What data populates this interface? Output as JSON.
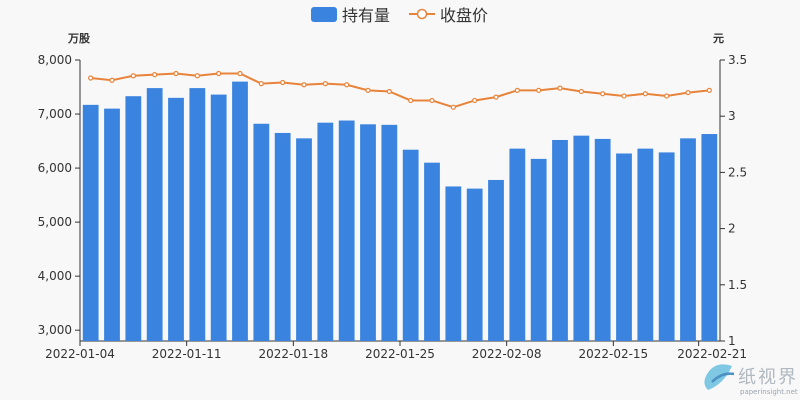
{
  "chart_data": {
    "type": "bar",
    "legend": {
      "position": "top-center",
      "entries": [
        {
          "name": "持有量",
          "marker": "bar"
        },
        {
          "name": "收盘价",
          "marker": "line"
        }
      ]
    },
    "y_left": {
      "unit": "万股",
      "min": 2800,
      "max": 8000,
      "ticks": [
        3000,
        4000,
        5000,
        6000,
        7000,
        8000
      ],
      "tick_labels": [
        "3,000",
        "4,000",
        "5,000",
        "6,000",
        "7,000",
        "8,000"
      ]
    },
    "y_right": {
      "unit": "元",
      "min": 1,
      "max": 3.5,
      "ticks": [
        1,
        1.5,
        2,
        2.5,
        3,
        3.5
      ],
      "tick_labels": [
        "1",
        "1.5",
        "2",
        "2.5",
        "3",
        "3.5"
      ]
    },
    "x_tick_labels": [
      {
        "label": "2022-01-04",
        "index": 0
      },
      {
        "label": "2022-01-11",
        "index": 5
      },
      {
        "label": "2022-01-18",
        "index": 10
      },
      {
        "label": "2022-01-25",
        "index": 15
      },
      {
        "label": "2022-02-08",
        "index": 20
      },
      {
        "label": "2022-02-15",
        "index": 25
      },
      {
        "label": "2022-02-21",
        "index": 29
      }
    ],
    "grid": false,
    "series": [
      {
        "name": "持有量",
        "type": "bar",
        "axis": "left",
        "color": "#3a84e0",
        "values": [
          7170,
          7100,
          7330,
          7480,
          7300,
          7480,
          7360,
          7600,
          6820,
          6650,
          6550,
          6840,
          6880,
          6810,
          6800,
          6340,
          6100,
          5660,
          5620,
          5780,
          6360,
          6170,
          6520,
          6600,
          6540,
          6270,
          6360,
          6290,
          6550,
          6630
        ]
      },
      {
        "name": "收盘价",
        "type": "line",
        "axis": "right",
        "color": "#e8833a",
        "values": [
          3.34,
          3.32,
          3.36,
          3.37,
          3.38,
          3.36,
          3.38,
          3.38,
          3.29,
          3.3,
          3.28,
          3.29,
          3.28,
          3.23,
          3.22,
          3.14,
          3.14,
          3.08,
          3.14,
          3.17,
          3.23,
          3.23,
          3.25,
          3.22,
          3.2,
          3.18,
          3.2,
          3.18,
          3.21,
          3.23
        ]
      }
    ]
  },
  "watermark": {
    "name": "纸视界",
    "url": "paperinsight.net",
    "colors": [
      "#7ec8e3",
      "#4a90c2"
    ]
  }
}
